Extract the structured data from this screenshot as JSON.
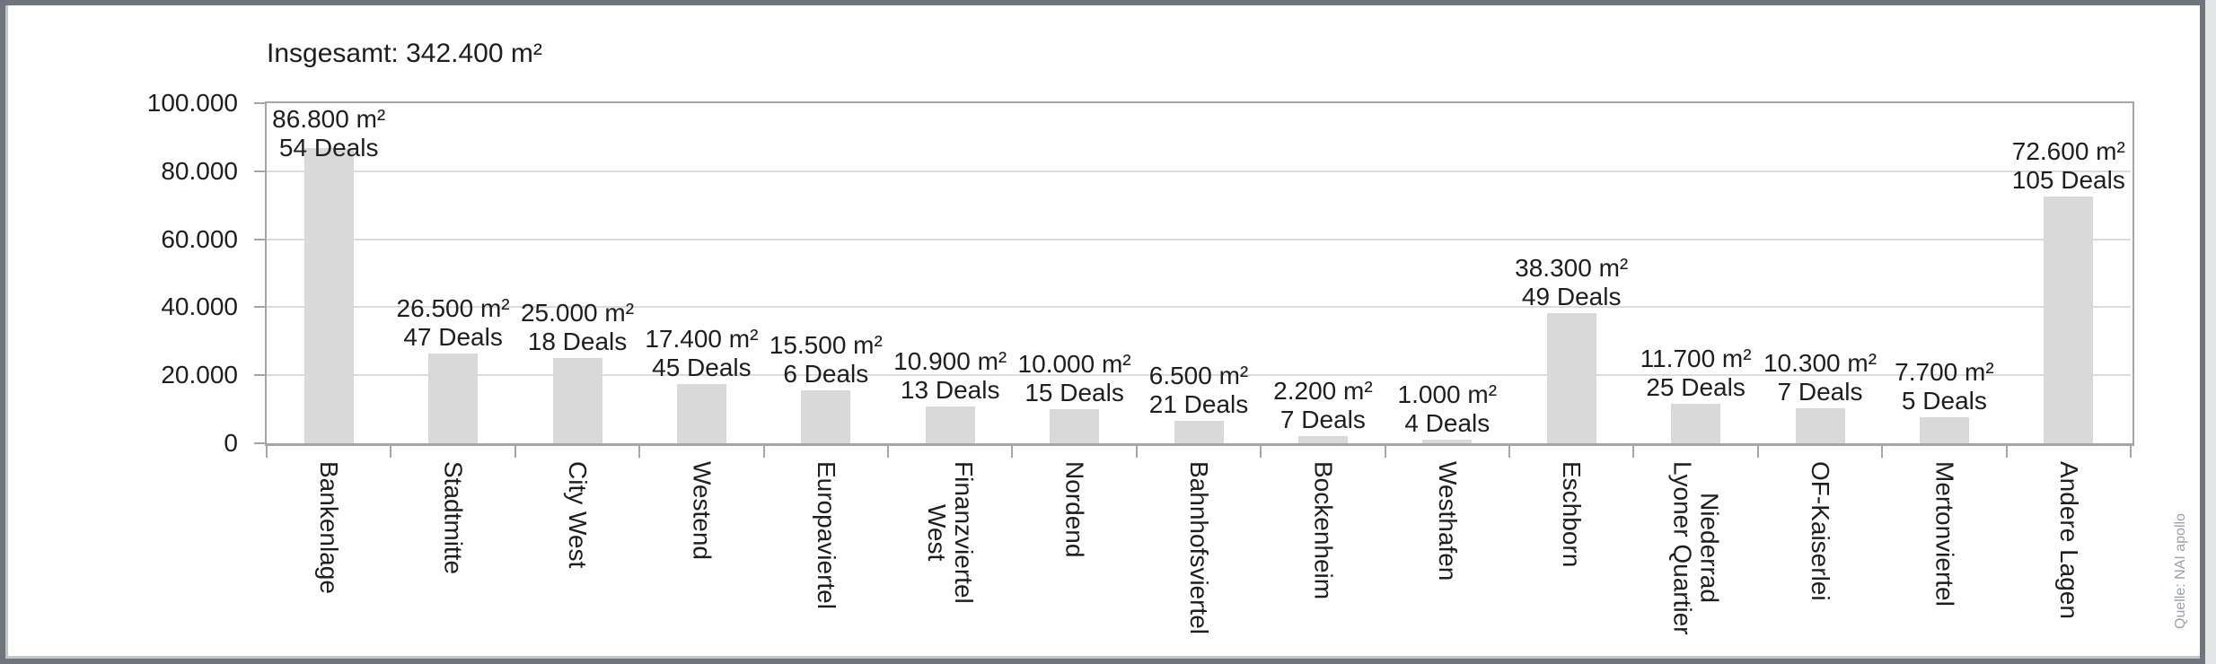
{
  "chart_data": {
    "type": "bar",
    "title": "Insgesamt: 342.400 m²",
    "source": "Quelle: NAI apollo",
    "xlabel": "",
    "ylabel": "",
    "ylim": [
      0,
      100000
    ],
    "y_tick_interval": 20000,
    "y_tick_labels": [
      "0",
      "20.000",
      "40.000",
      "60.000",
      "80.000",
      "100.000"
    ],
    "grid": true,
    "legend": false,
    "categories": [
      "Bankenlage",
      "Stadtmitte",
      "City West",
      "Westend",
      "Europaviertel",
      "Finanzviertel\nWest",
      "Nordend",
      "Bahnhofsviertel",
      "Bockenheim",
      "Westhafen",
      "Eschborn",
      "Niederrad\nLyoner Quartier",
      "OF-Kaiserlei",
      "Mertonviertel",
      "Andere Lagen"
    ],
    "values": [
      86800,
      26500,
      25000,
      17400,
      15500,
      10900,
      10000,
      6500,
      2200,
      1000,
      38300,
      11700,
      10300,
      7700,
      72600
    ],
    "deals": [
      54,
      47,
      18,
      45,
      6,
      13,
      15,
      21,
      7,
      4,
      49,
      25,
      7,
      5,
      105
    ],
    "bars": [
      {
        "category": "Bankenlage",
        "value": 86800,
        "deals": 54,
        "area_label": "86.800 m²",
        "deals_label": "54 Deals"
      },
      {
        "category": "Stadtmitte",
        "value": 26500,
        "deals": 47,
        "area_label": "26.500 m²",
        "deals_label": "47 Deals"
      },
      {
        "category": "City West",
        "value": 25000,
        "deals": 18,
        "area_label": "25.000 m²",
        "deals_label": "18 Deals"
      },
      {
        "category": "Westend",
        "value": 17400,
        "deals": 45,
        "area_label": "17.400 m²",
        "deals_label": "45 Deals"
      },
      {
        "category": "Europaviertel",
        "value": 15500,
        "deals": 6,
        "area_label": "15.500 m²",
        "deals_label": "6 Deals"
      },
      {
        "category": "Finanzviertel\nWest",
        "value": 10900,
        "deals": 13,
        "area_label": "10.900 m²",
        "deals_label": "13 Deals"
      },
      {
        "category": "Nordend",
        "value": 10000,
        "deals": 15,
        "area_label": "10.000 m²",
        "deals_label": "15 Deals"
      },
      {
        "category": "Bahnhofsviertel",
        "value": 6500,
        "deals": 21,
        "area_label": "6.500 m²",
        "deals_label": "21 Deals"
      },
      {
        "category": "Bockenheim",
        "value": 2200,
        "deals": 7,
        "area_label": "2.200 m²",
        "deals_label": "7 Deals"
      },
      {
        "category": "Westhafen",
        "value": 1000,
        "deals": 4,
        "area_label": "1.000 m²",
        "deals_label": "4 Deals"
      },
      {
        "category": "Eschborn",
        "value": 38300,
        "deals": 49,
        "area_label": "38.300 m²",
        "deals_label": "49 Deals"
      },
      {
        "category": "Niederrad\nLyoner Quartier",
        "value": 11700,
        "deals": 25,
        "area_label": "11.700 m²",
        "deals_label": "25 Deals"
      },
      {
        "category": "OF-Kaiserlei",
        "value": 10300,
        "deals": 7,
        "area_label": "10.300 m²",
        "deals_label": "7 Deals"
      },
      {
        "category": "Mertonviertel",
        "value": 7700,
        "deals": 5,
        "area_label": "7.700 m²",
        "deals_label": "5 Deals"
      },
      {
        "category": "Andere Lagen",
        "value": 72600,
        "deals": 105,
        "area_label": "72.600 m²",
        "deals_label": "105 Deals"
      }
    ],
    "colors": {
      "bar_fill": "#d9d9d9",
      "gridline": "#dcdcdc",
      "axis": "#a6a6a6",
      "text": "#1e1e1e",
      "source_text": "#9ba1a8",
      "frame": "#70757d",
      "background": "#ffffff"
    }
  }
}
